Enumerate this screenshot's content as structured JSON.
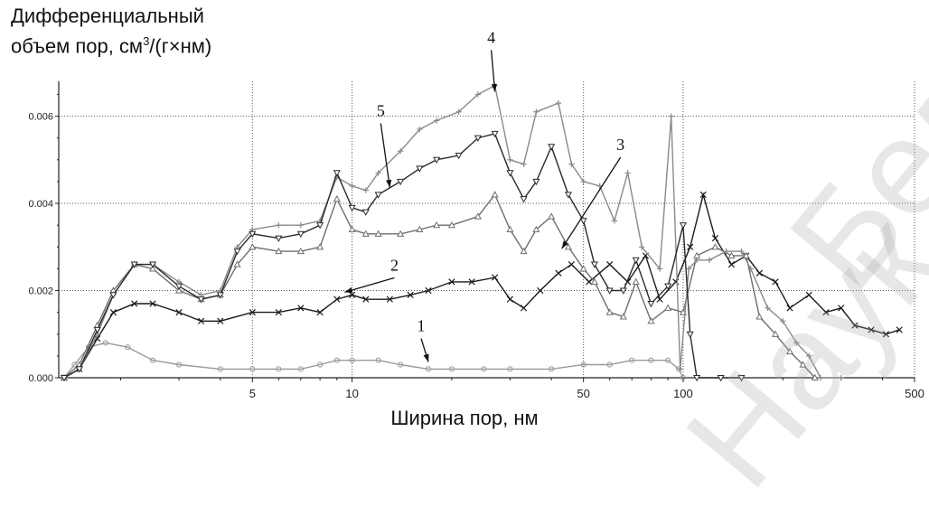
{
  "chart_data": {
    "type": "line",
    "ylabel_line1": "Дифференциальный",
    "ylabel_pre": "объем пор, см",
    "ylabel_sup": "3",
    "ylabel_post": "/(г×нм)",
    "xlabel": "Ширина пор, нм",
    "x_scale": "log",
    "xlim": [
      1.3,
      500
    ],
    "ylim": [
      0,
      0.0068
    ],
    "grid": true,
    "x_ticks": [
      5,
      10,
      50,
      100,
      500
    ],
    "y_ticks": [
      "0.000",
      "0.002",
      "0.004",
      "0.006"
    ],
    "annotations": [
      {
        "label": "1",
        "x": 17,
        "y": 0.0003
      },
      {
        "label": "2",
        "x": 9.5,
        "y": 0.0019
      },
      {
        "label": "3",
        "x": 43,
        "y": 0.0029
      },
      {
        "label": "4",
        "x": 27,
        "y": 0.0065
      },
      {
        "label": "5",
        "x": 13,
        "y": 0.0043
      }
    ],
    "series": [
      {
        "name": "1",
        "marker": "circle",
        "color": "#9a9a9a",
        "points": [
          [
            1.35,
            0
          ],
          [
            1.45,
            0.0003
          ],
          [
            1.6,
            0.0007
          ],
          [
            1.8,
            0.0008
          ],
          [
            2.1,
            0.0007
          ],
          [
            2.5,
            0.0004
          ],
          [
            3,
            0.0003
          ],
          [
            4,
            0.0002
          ],
          [
            5,
            0.0002
          ],
          [
            6,
            0.0002
          ],
          [
            7,
            0.0002
          ],
          [
            8,
            0.0003
          ],
          [
            9,
            0.0004
          ],
          [
            10,
            0.0004
          ],
          [
            12,
            0.0004
          ],
          [
            14,
            0.0003
          ],
          [
            17,
            0.0002
          ],
          [
            20,
            0.0002
          ],
          [
            25,
            0.0002
          ],
          [
            30,
            0.0002
          ],
          [
            40,
            0.0002
          ],
          [
            50,
            0.0003
          ],
          [
            60,
            0.0003
          ],
          [
            70,
            0.0004
          ],
          [
            80,
            0.0004
          ],
          [
            90,
            0.0004
          ],
          [
            97,
            0.0002
          ],
          [
            100,
            0
          ]
        ]
      },
      {
        "name": "2",
        "marker": "x",
        "color": "#1a1a1a",
        "points": [
          [
            1.35,
            0
          ],
          [
            1.5,
            0.0002
          ],
          [
            1.7,
            0.0009
          ],
          [
            1.9,
            0.0015
          ],
          [
            2.2,
            0.0017
          ],
          [
            2.5,
            0.0017
          ],
          [
            3,
            0.0015
          ],
          [
            3.5,
            0.0013
          ],
          [
            4,
            0.0013
          ],
          [
            5,
            0.0015
          ],
          [
            6,
            0.0015
          ],
          [
            7,
            0.0016
          ],
          [
            8,
            0.0015
          ],
          [
            9,
            0.0018
          ],
          [
            10,
            0.0019
          ],
          [
            11,
            0.0018
          ],
          [
            13,
            0.0018
          ],
          [
            15,
            0.0019
          ],
          [
            17,
            0.002
          ],
          [
            20,
            0.0022
          ],
          [
            23,
            0.0022
          ],
          [
            27,
            0.0023
          ],
          [
            30,
            0.0018
          ],
          [
            33,
            0.0016
          ],
          [
            37,
            0.002
          ],
          [
            42,
            0.0024
          ],
          [
            46,
            0.0026
          ],
          [
            52,
            0.0022
          ],
          [
            60,
            0.0026
          ],
          [
            68,
            0.0022
          ],
          [
            77,
            0.0028
          ],
          [
            85,
            0.0018
          ],
          [
            95,
            0.0022
          ],
          [
            105,
            0.003
          ],
          [
            115,
            0.0042
          ],
          [
            125,
            0.0032
          ],
          [
            140,
            0.0026
          ],
          [
            155,
            0.0028
          ],
          [
            170,
            0.0024
          ],
          [
            190,
            0.0022
          ],
          [
            210,
            0.0016
          ],
          [
            240,
            0.0019
          ],
          [
            270,
            0.0015
          ],
          [
            300,
            0.0016
          ],
          [
            330,
            0.0012
          ],
          [
            370,
            0.0011
          ],
          [
            410,
            0.001
          ],
          [
            450,
            0.0011
          ]
        ]
      },
      {
        "name": "3",
        "marker": "triangle-up",
        "color": "#6e6e6e",
        "points": [
          [
            1.35,
            0
          ],
          [
            1.5,
            0.0003
          ],
          [
            1.7,
            0.0012
          ],
          [
            1.9,
            0.002
          ],
          [
            2.2,
            0.0026
          ],
          [
            2.5,
            0.0025
          ],
          [
            3,
            0.002
          ],
          [
            3.5,
            0.0018
          ],
          [
            4,
            0.0019
          ],
          [
            4.5,
            0.0026
          ],
          [
            5,
            0.003
          ],
          [
            6,
            0.0029
          ],
          [
            7,
            0.0029
          ],
          [
            8,
            0.003
          ],
          [
            9,
            0.0041
          ],
          [
            10,
            0.0034
          ],
          [
            11,
            0.0033
          ],
          [
            12,
            0.0033
          ],
          [
            14,
            0.0033
          ],
          [
            16,
            0.0034
          ],
          [
            18,
            0.0035
          ],
          [
            20,
            0.0035
          ],
          [
            24,
            0.0037
          ],
          [
            27,
            0.0042
          ],
          [
            30,
            0.0034
          ],
          [
            33,
            0.0029
          ],
          [
            36,
            0.0034
          ],
          [
            40,
            0.0037
          ],
          [
            45,
            0.003
          ],
          [
            50,
            0.0025
          ],
          [
            54,
            0.0022
          ],
          [
            60,
            0.0015
          ],
          [
            66,
            0.0014
          ],
          [
            72,
            0.0022
          ],
          [
            80,
            0.0013
          ],
          [
            90,
            0.0016
          ],
          [
            100,
            0.0015
          ],
          [
            110,
            0.0028
          ],
          [
            125,
            0.003
          ],
          [
            140,
            0.0028
          ],
          [
            155,
            0.0028
          ],
          [
            170,
            0.0014
          ],
          [
            190,
            0.001
          ],
          [
            210,
            0.0006
          ],
          [
            230,
            0.0003
          ],
          [
            250,
            0
          ]
        ]
      },
      {
        "name": "4",
        "marker": "plus",
        "color": "#8a8a8a",
        "points": [
          [
            1.35,
            0
          ],
          [
            1.5,
            0.0002
          ],
          [
            1.7,
            0.001
          ],
          [
            1.9,
            0.0019
          ],
          [
            2.2,
            0.0026
          ],
          [
            2.5,
            0.0026
          ],
          [
            3,
            0.0022
          ],
          [
            3.5,
            0.0019
          ],
          [
            4,
            0.002
          ],
          [
            4.5,
            0.003
          ],
          [
            5,
            0.0034
          ],
          [
            6,
            0.0035
          ],
          [
            7,
            0.0035
          ],
          [
            8,
            0.0036
          ],
          [
            9,
            0.0046
          ],
          [
            10,
            0.0044
          ],
          [
            11,
            0.0043
          ],
          [
            12,
            0.0047
          ],
          [
            14,
            0.0052
          ],
          [
            16,
            0.0057
          ],
          [
            18,
            0.0059
          ],
          [
            21,
            0.0061
          ],
          [
            24,
            0.0065
          ],
          [
            27,
            0.0067
          ],
          [
            30,
            0.005
          ],
          [
            33,
            0.0049
          ],
          [
            36,
            0.0061
          ],
          [
            42,
            0.0063
          ],
          [
            46,
            0.0049
          ],
          [
            50,
            0.0045
          ],
          [
            56,
            0.0044
          ],
          [
            62,
            0.0036
          ],
          [
            68,
            0.0047
          ],
          [
            75,
            0.003
          ],
          [
            85,
            0.0025
          ],
          [
            92,
            0.006
          ],
          [
            98,
            0.0002
          ],
          [
            104,
            0.0025
          ],
          [
            110,
            0.0027
          ],
          [
            120,
            0.0027
          ],
          [
            135,
            0.0029
          ],
          [
            150,
            0.0029
          ],
          [
            160,
            0.0025
          ],
          [
            180,
            0.0016
          ],
          [
            200,
            0.0013
          ],
          [
            220,
            0.0008
          ],
          [
            240,
            0.0005
          ],
          [
            260,
            0
          ],
          [
            300,
            0
          ]
        ]
      },
      {
        "name": "5",
        "marker": "triangle-down",
        "color": "#2a2a2a",
        "points": [
          [
            1.35,
            0
          ],
          [
            1.5,
            0.0002
          ],
          [
            1.7,
            0.0011
          ],
          [
            1.9,
            0.0019
          ],
          [
            2.2,
            0.0026
          ],
          [
            2.5,
            0.0026
          ],
          [
            3,
            0.0021
          ],
          [
            3.5,
            0.0018
          ],
          [
            4,
            0.0019
          ],
          [
            4.5,
            0.0029
          ],
          [
            5,
            0.0033
          ],
          [
            6,
            0.0032
          ],
          [
            7,
            0.0033
          ],
          [
            8,
            0.0035
          ],
          [
            9,
            0.0047
          ],
          [
            10,
            0.0039
          ],
          [
            11,
            0.0038
          ],
          [
            12,
            0.0042
          ],
          [
            14,
            0.0045
          ],
          [
            16,
            0.0048
          ],
          [
            18,
            0.005
          ],
          [
            21,
            0.0051
          ],
          [
            24,
            0.0055
          ],
          [
            27,
            0.0056
          ],
          [
            30,
            0.0047
          ],
          [
            33,
            0.0041
          ],
          [
            36,
            0.0045
          ],
          [
            40,
            0.0053
          ],
          [
            45,
            0.0042
          ],
          [
            50,
            0.0036
          ],
          [
            54,
            0.0026
          ],
          [
            60,
            0.002
          ],
          [
            66,
            0.002
          ],
          [
            72,
            0.0027
          ],
          [
            80,
            0.0017
          ],
          [
            90,
            0.0021
          ],
          [
            100,
            0.0035
          ],
          [
            105,
            0.001
          ],
          [
            110,
            0
          ],
          [
            130,
            0
          ],
          [
            150,
            0
          ]
        ]
      }
    ]
  }
}
